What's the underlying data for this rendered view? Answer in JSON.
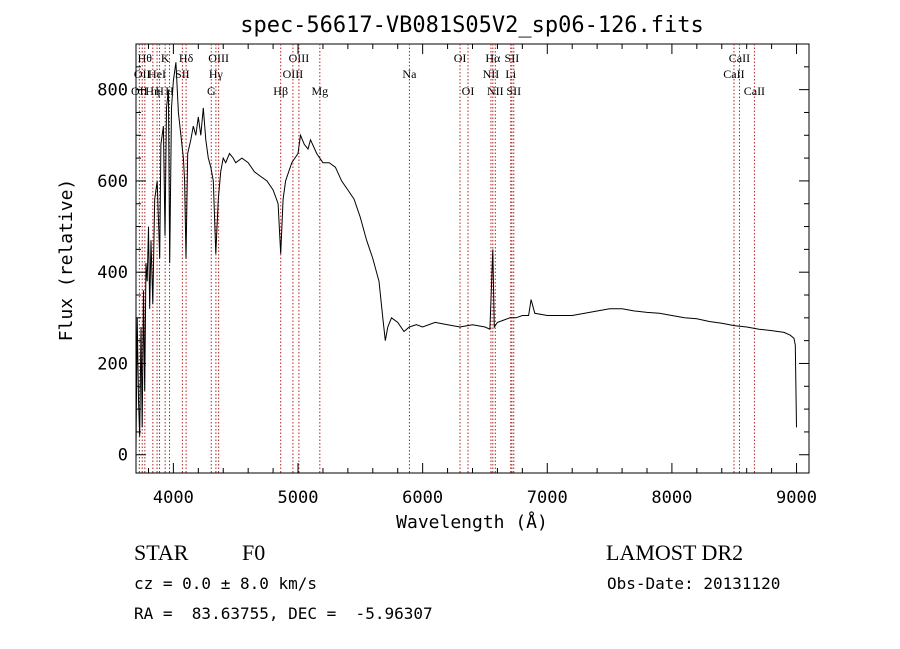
{
  "chart_data": {
    "type": "line",
    "title": "spec-56617-VB081S05V2_sp06-126.fits",
    "xlabel": "Wavelength (Å)",
    "ylabel": "Flux (relative)",
    "xlim": [
      3700,
      9100
    ],
    "ylim": [
      -40,
      900
    ],
    "x_ticks": [
      4000,
      5000,
      6000,
      7000,
      8000,
      9000
    ],
    "y_ticks": [
      0,
      200,
      400,
      600,
      800
    ],
    "grid": false,
    "line_color": "#000000",
    "marker_color": "#b22222",
    "series": [
      {
        "points": [
          [
            3700,
            10
          ],
          [
            3710,
            300
          ],
          [
            3720,
            120
          ],
          [
            3730,
            40
          ],
          [
            3740,
            280
          ],
          [
            3750,
            60
          ],
          [
            3760,
            360
          ],
          [
            3770,
            140
          ],
          [
            3780,
            420
          ],
          [
            3790,
            380
          ],
          [
            3800,
            500
          ],
          [
            3810,
            320
          ],
          [
            3820,
            470
          ],
          [
            3835,
            330
          ],
          [
            3850,
            560
          ],
          [
            3870,
            600
          ],
          [
            3890,
            430
          ],
          [
            3900,
            680
          ],
          [
            3920,
            720
          ],
          [
            3933,
            480
          ],
          [
            3945,
            760
          ],
          [
            3960,
            800
          ],
          [
            3970,
            420
          ],
          [
            3985,
            760
          ],
          [
            4000,
            820
          ],
          [
            4020,
            860
          ],
          [
            4040,
            750
          ],
          [
            4060,
            700
          ],
          [
            4080,
            650
          ],
          [
            4090,
            600
          ],
          [
            4101,
            430
          ],
          [
            4115,
            660
          ],
          [
            4140,
            690
          ],
          [
            4160,
            720
          ],
          [
            4180,
            700
          ],
          [
            4200,
            740
          ],
          [
            4220,
            700
          ],
          [
            4240,
            760
          ],
          [
            4260,
            690
          ],
          [
            4280,
            650
          ],
          [
            4300,
            630
          ],
          [
            4320,
            600
          ],
          [
            4340,
            440
          ],
          [
            4360,
            560
          ],
          [
            4380,
            620
          ],
          [
            4400,
            650
          ],
          [
            4420,
            640
          ],
          [
            4450,
            660
          ],
          [
            4480,
            650
          ],
          [
            4500,
            640
          ],
          [
            4550,
            650
          ],
          [
            4600,
            640
          ],
          [
            4650,
            620
          ],
          [
            4700,
            610
          ],
          [
            4750,
            600
          ],
          [
            4800,
            580
          ],
          [
            4840,
            550
          ],
          [
            4861,
            440
          ],
          [
            4880,
            560
          ],
          [
            4900,
            600
          ],
          [
            4950,
            640
          ],
          [
            5000,
            660
          ],
          [
            5020,
            700
          ],
          [
            5050,
            680
          ],
          [
            5080,
            670
          ],
          [
            5100,
            690
          ],
          [
            5150,
            660
          ],
          [
            5200,
            640
          ],
          [
            5250,
            640
          ],
          [
            5300,
            630
          ],
          [
            5350,
            600
          ],
          [
            5400,
            580
          ],
          [
            5450,
            560
          ],
          [
            5500,
            520
          ],
          [
            5550,
            470
          ],
          [
            5600,
            430
          ],
          [
            5650,
            380
          ],
          [
            5680,
            300
          ],
          [
            5700,
            250
          ],
          [
            5720,
            280
          ],
          [
            5750,
            300
          ],
          [
            5800,
            290
          ],
          [
            5850,
            270
          ],
          [
            5893,
            280
          ],
          [
            5950,
            285
          ],
          [
            6000,
            280
          ],
          [
            6100,
            290
          ],
          [
            6200,
            285
          ],
          [
            6300,
            280
          ],
          [
            6400,
            285
          ],
          [
            6500,
            280
          ],
          [
            6540,
            275
          ],
          [
            6563,
            450
          ],
          [
            6575,
            280
          ],
          [
            6600,
            290
          ],
          [
            6650,
            295
          ],
          [
            6700,
            300
          ],
          [
            6750,
            300
          ],
          [
            6800,
            305
          ],
          [
            6850,
            305
          ],
          [
            6870,
            340
          ],
          [
            6900,
            310
          ],
          [
            7000,
            305
          ],
          [
            7100,
            305
          ],
          [
            7200,
            305
          ],
          [
            7300,
            310
          ],
          [
            7400,
            315
          ],
          [
            7500,
            320
          ],
          [
            7600,
            320
          ],
          [
            7700,
            315
          ],
          [
            7800,
            312
          ],
          [
            7900,
            310
          ],
          [
            8000,
            305
          ],
          [
            8100,
            300
          ],
          [
            8200,
            298
          ],
          [
            8300,
            292
          ],
          [
            8400,
            288
          ],
          [
            8500,
            283
          ],
          [
            8600,
            280
          ],
          [
            8700,
            275
          ],
          [
            8800,
            272
          ],
          [
            8900,
            268
          ],
          [
            8950,
            262
          ],
          [
            8980,
            255
          ],
          [
            8990,
            240
          ],
          [
            9000,
            60
          ]
        ]
      }
    ],
    "lines": [
      {
        "x": 3727,
        "label": "OII",
        "row": 3
      },
      {
        "x": 3750,
        "label": "OII",
        "row": 2
      },
      {
        "x": 3771,
        "label": "Hθ",
        "row": 1
      },
      {
        "x": 3835,
        "label": "Hη",
        "row": 3
      },
      {
        "x": 3869,
        "label": "HeI",
        "row": 2
      },
      {
        "x": 3889,
        "label": "H",
        "row": 3
      },
      {
        "x": 3934,
        "label": "K",
        "row": 1
      },
      {
        "x": 3969,
        "label": "H",
        "row": 3
      },
      {
        "x": 4072,
        "label": "SII",
        "row": 2
      },
      {
        "x": 4102,
        "label": "Hδ",
        "row": 1
      },
      {
        "x": 4304,
        "label": "G",
        "row": 3
      },
      {
        "x": 4341,
        "label": "Hγ",
        "row": 2
      },
      {
        "x": 4363,
        "label": "OIII",
        "row": 1
      },
      {
        "x": 4861,
        "label": "Hβ",
        "row": 3
      },
      {
        "x": 4959,
        "label": "OIII",
        "row": 2
      },
      {
        "x": 5007,
        "label": "OIII",
        "row": 1
      },
      {
        "x": 5175,
        "label": "Mg",
        "row": 3
      },
      {
        "x": 5894,
        "label": "Na",
        "row": 2
      },
      {
        "x": 6300,
        "label": "OI",
        "row": 1
      },
      {
        "x": 6364,
        "label": "OI",
        "row": 3
      },
      {
        "x": 6548,
        "label": "NII",
        "row": 2
      },
      {
        "x": 6563,
        "label": "Hα",
        "row": 1
      },
      {
        "x": 6583,
        "label": "NII",
        "row": 3
      },
      {
        "x": 6707,
        "label": "Li",
        "row": 2
      },
      {
        "x": 6716,
        "label": "SII",
        "row": 1
      },
      {
        "x": 6731,
        "label": "SII",
        "row": 3
      },
      {
        "x": 8498,
        "label": "CaII",
        "row": 2
      },
      {
        "x": 8542,
        "label": "CaII",
        "row": 1
      },
      {
        "x": 8662,
        "label": "CaII",
        "row": 3
      }
    ]
  },
  "info": {
    "object_type": "STAR",
    "subclass": "F0",
    "survey": "LAMOST DR2",
    "cz": "cz = 0.0 ± 8.0 km/s",
    "obs_date": "Obs-Date: 20131120",
    "coords": "RA =  83.63755, DEC =  -5.96307"
  }
}
